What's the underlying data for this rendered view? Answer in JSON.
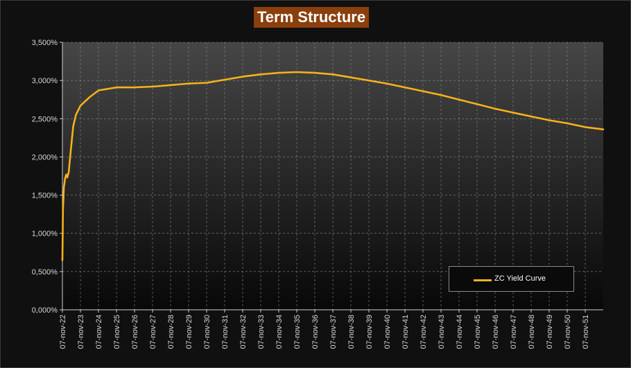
{
  "chart_data": {
    "type": "line",
    "title": "Term Structure",
    "xlabel": "",
    "ylabel": "",
    "x_tick_labels": [
      "07-nov-22",
      "07-nov-23",
      "07-nov-24",
      "07-nov-25",
      "07-nov-26",
      "07-nov-27",
      "07-nov-28",
      "07-nov-29",
      "07-nov-30",
      "07-nov-31",
      "07-nov-32",
      "07-nov-33",
      "07-nov-34",
      "07-nov-35",
      "07-nov-36",
      "07-nov-37",
      "07-nov-38",
      "07-nov-39",
      "07-nov-40",
      "07-nov-41",
      "07-nov-42",
      "07-nov-43",
      "07-nov-44",
      "07-nov-45",
      "07-nov-46",
      "07-nov-47",
      "07-nov-48",
      "07-nov-49",
      "07-nov-50",
      "07-nov-51"
    ],
    "y_tick_labels": [
      "0,000%",
      "0,500%",
      "1,000%",
      "1,500%",
      "2,000%",
      "2,500%",
      "3,000%",
      "3,500%"
    ],
    "xlim": [
      2022.85,
      2052.85
    ],
    "ylim": [
      0,
      3.5
    ],
    "y_unit": "%",
    "grid": true,
    "legend_placement": "bottom-right",
    "series": [
      {
        "name": "ZC Yield Curve",
        "color": "#f5b21a",
        "points": [
          [
            2022.85,
            0.65
          ],
          [
            2022.88,
            1.3
          ],
          [
            2022.93,
            1.6
          ],
          [
            2023.0,
            1.72
          ],
          [
            2023.06,
            1.77
          ],
          [
            2023.12,
            1.73
          ],
          [
            2023.2,
            1.8
          ],
          [
            2023.3,
            2.05
          ],
          [
            2023.45,
            2.4
          ],
          [
            2023.6,
            2.55
          ],
          [
            2023.85,
            2.67
          ],
          [
            2024.35,
            2.78
          ],
          [
            2024.85,
            2.87
          ],
          [
            2025.85,
            2.91
          ],
          [
            2026.85,
            2.91
          ],
          [
            2027.85,
            2.92
          ],
          [
            2028.85,
            2.94
          ],
          [
            2029.85,
            2.96
          ],
          [
            2030.85,
            2.97
          ],
          [
            2031.85,
            3.01
          ],
          [
            2032.85,
            3.05
          ],
          [
            2033.85,
            3.08
          ],
          [
            2034.85,
            3.1
          ],
          [
            2035.85,
            3.11
          ],
          [
            2036.85,
            3.1
          ],
          [
            2037.85,
            3.08
          ],
          [
            2038.85,
            3.04
          ],
          [
            2039.85,
            3.0
          ],
          [
            2040.85,
            2.96
          ],
          [
            2041.85,
            2.91
          ],
          [
            2042.85,
            2.86
          ],
          [
            2043.85,
            2.81
          ],
          [
            2044.85,
            2.75
          ],
          [
            2045.85,
            2.69
          ],
          [
            2046.85,
            2.63
          ],
          [
            2047.85,
            2.58
          ],
          [
            2048.85,
            2.53
          ],
          [
            2049.85,
            2.48
          ],
          [
            2050.85,
            2.44
          ],
          [
            2051.85,
            2.39
          ],
          [
            2052.85,
            2.36
          ]
        ]
      }
    ]
  },
  "colors": {
    "background": "#101010",
    "title_background": "#8b3f0c",
    "line": "#f5b21a",
    "grid": "#8a8a8a",
    "axis_text": "#d8d8d8"
  }
}
